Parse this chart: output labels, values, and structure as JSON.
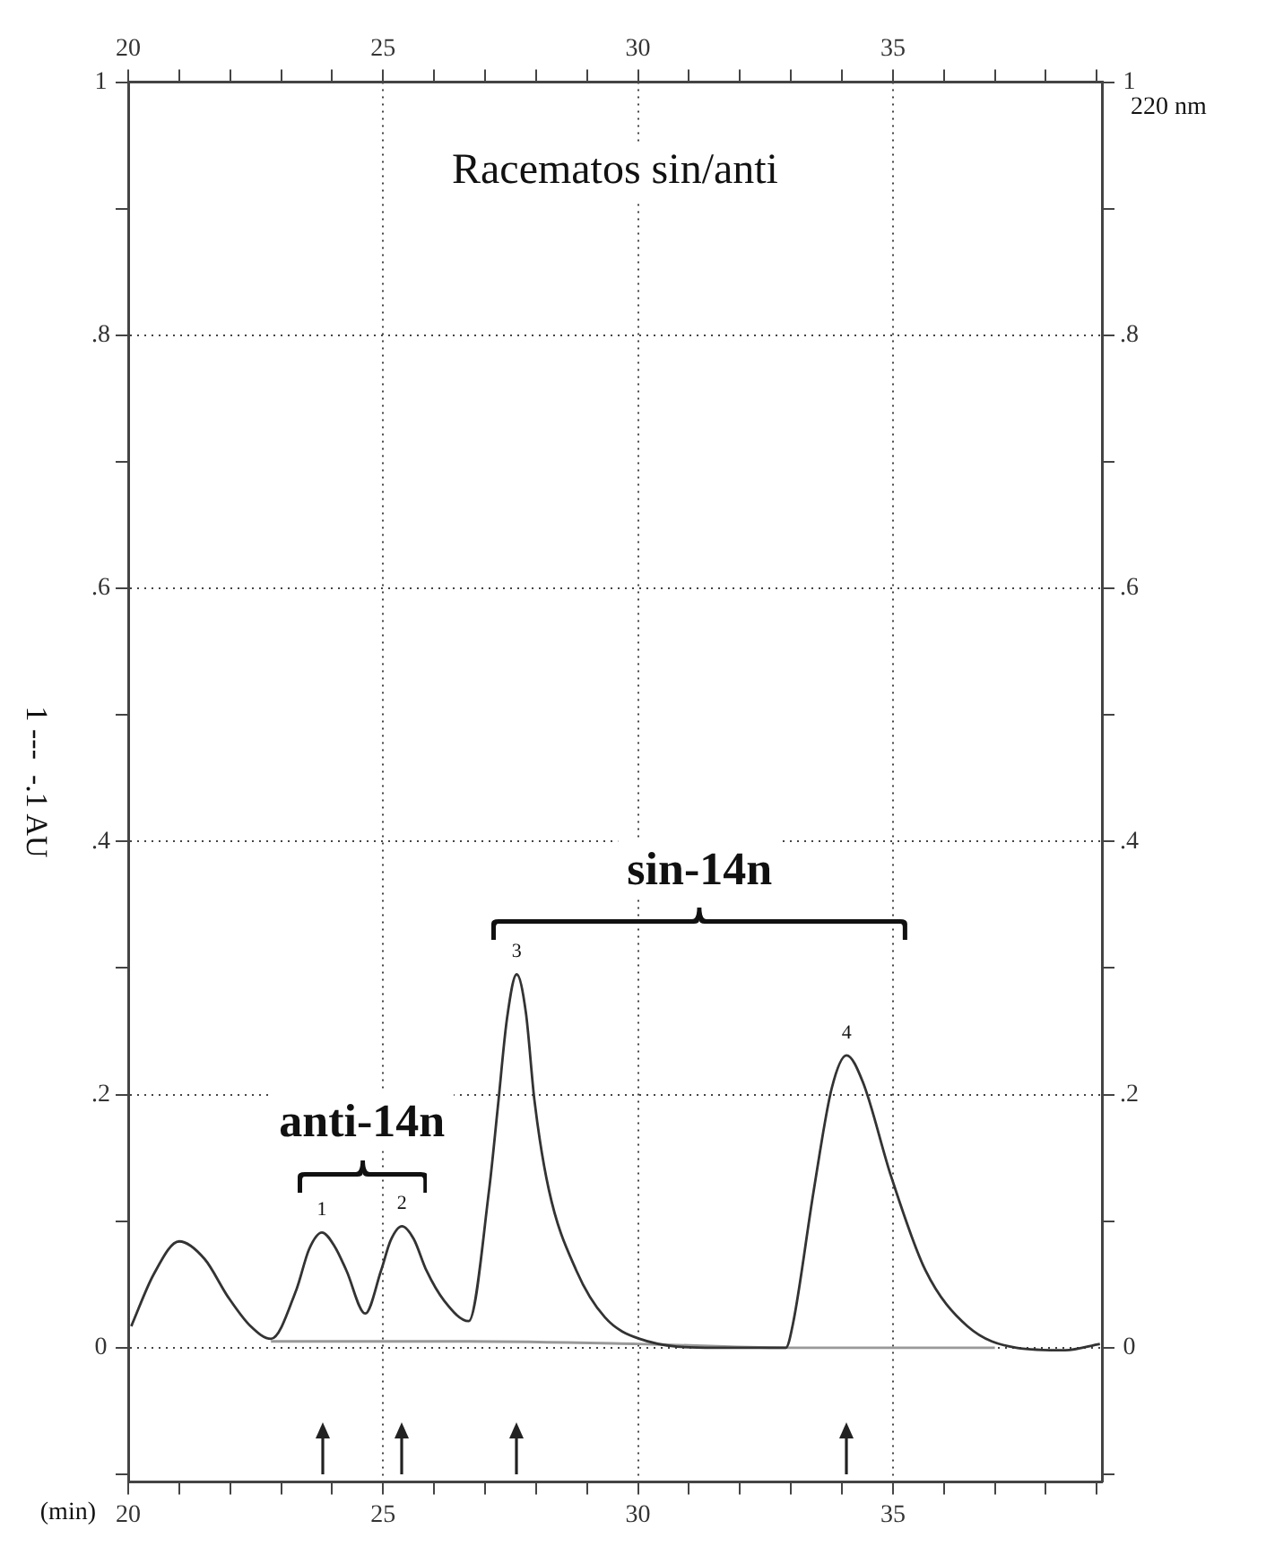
{
  "chart_data": {
    "type": "line",
    "title": "Racematos sin/anti",
    "xlabel": "(min)",
    "ylabel": "1 ---  -.1 AU",
    "xlim": [
      20,
      39.1
    ],
    "ylim": [
      -0.106,
      1
    ],
    "xticks": [
      20,
      {
        "value": 21,
        "label": null
      },
      {
        "value": 22,
        "label": null
      },
      {
        "value": 23,
        "label": null
      },
      {
        "value": 24,
        "label": null
      },
      25,
      {
        "value": 26,
        "label": null
      },
      {
        "value": 27,
        "label": null
      },
      {
        "value": 28,
        "label": null
      },
      {
        "value": 29,
        "label": null
      },
      30,
      {
        "value": 31,
        "label": null
      },
      {
        "value": 32,
        "label": null
      },
      {
        "value": 33,
        "label": null
      },
      {
        "value": 34,
        "label": null
      },
      35,
      {
        "value": 36,
        "label": null
      },
      {
        "value": 37,
        "label": null
      },
      {
        "value": 38,
        "label": null
      },
      {
        "value": 39,
        "label": null
      }
    ],
    "x2lim": [
      20,
      39.1
    ],
    "x2ticks": [
      20,
      {
        "value": 21,
        "label": null
      },
      {
        "value": 22,
        "label": null
      },
      {
        "value": 23,
        "label": null
      },
      {
        "value": 24,
        "label": null
      },
      25,
      {
        "value": 26,
        "label": null
      },
      {
        "value": 27,
        "label": null
      },
      {
        "value": 28,
        "label": null
      },
      {
        "value": 29,
        "label": null
      },
      30,
      {
        "value": 31,
        "label": null
      },
      {
        "value": 32,
        "label": null
      },
      {
        "value": 33,
        "label": null
      },
      {
        "value": 34,
        "label": null
      },
      35,
      {
        "value": 36,
        "label": null
      },
      {
        "value": 37,
        "label": null
      },
      {
        "value": 38,
        "label": null
      },
      {
        "value": 39,
        "label": null
      }
    ],
    "yticks": [
      {
        "value": -0.1,
        "label": null
      },
      0,
      {
        "value": 0.1,
        "label": null
      },
      {
        "value": 0.2,
        "label": ".2"
      },
      {
        "value": 0.3,
        "label": null
      },
      {
        "value": 0.4,
        "label": ".4"
      },
      {
        "value": 0.5,
        "label": null
      },
      {
        "value": 0.6,
        "label": ".6"
      },
      {
        "value": 0.7,
        "label": null
      },
      {
        "value": 0.8,
        "label": ".8"
      },
      {
        "value": 0.9,
        "label": null
      },
      1
    ],
    "y2lim": [
      -0.106,
      1
    ],
    "y2ticks": [
      {
        "value": -0.1,
        "label": null
      },
      0,
      {
        "value": 0.1,
        "label": null
      },
      {
        "value": 0.2,
        "label": ".2"
      },
      {
        "value": 0.3,
        "label": null
      },
      {
        "value": 0.4,
        "label": ".4"
      },
      {
        "value": 0.5,
        "label": null
      },
      {
        "value": 0.6,
        "label": ".6"
      },
      {
        "value": 0.7,
        "label": null
      },
      {
        "value": 0.8,
        "label": ".8"
      },
      {
        "value": 0.9,
        "label": null
      },
      1
    ],
    "grid": true,
    "legend": false,
    "marker": "none",
    "line_style": "solid",
    "series": [
      {
        "color": "#333333",
        "x": [
          20.06,
          20.5,
          21.0,
          21.5,
          21.96,
          22.4,
          22.8,
          23.3,
          23.55,
          23.8,
          24.05,
          24.28,
          24.65,
          24.96,
          25.15,
          25.37,
          25.6,
          25.85,
          26.2,
          26.68,
          27.08,
          27.25,
          27.43,
          27.62,
          27.8,
          27.97,
          28.25,
          28.79,
          29.35,
          30.03,
          31.5,
          32.9,
          33.04,
          33.45,
          33.8,
          34.09,
          34.41,
          34.96,
          35.64,
          36.46,
          37.42,
          38.38,
          39.06
        ],
        "values": [
          0.017,
          0.058,
          0.084,
          0.07,
          0.04,
          0.017,
          0.007,
          0.046,
          0.078,
          0.091,
          0.08,
          0.061,
          0.027,
          0.061,
          0.085,
          0.096,
          0.086,
          0.061,
          0.037,
          0.021,
          0.125,
          0.19,
          0.26,
          0.295,
          0.265,
          0.195,
          0.125,
          0.061,
          0.024,
          0.007,
          0.0,
          0.0,
          0.019,
          0.125,
          0.205,
          0.231,
          0.21,
          0.136,
          0.061,
          0.017,
          0.0,
          -0.002,
          0.003
        ]
      },
      {
        "color": "#999999",
        "x": [
          22.8,
          24.65,
          26.68,
          30.0,
          32.9,
          37.0
        ],
        "values": [
          0.005,
          0.005,
          0.005,
          0.003,
          0.0,
          0.0
        ]
      }
    ],
    "annotations": [
      "220 nm",
      {
        "text": "1",
        "x": 23.8,
        "y": 0.091
      },
      {
        "text": "2",
        "x": 25.37,
        "y": 0.096
      },
      {
        "text": "3",
        "x": 27.62,
        "y": 0.295
      },
      {
        "text": "4",
        "x": 34.09,
        "y": 0.231
      },
      "anti-14n",
      "sin-14n"
    ]
  }
}
